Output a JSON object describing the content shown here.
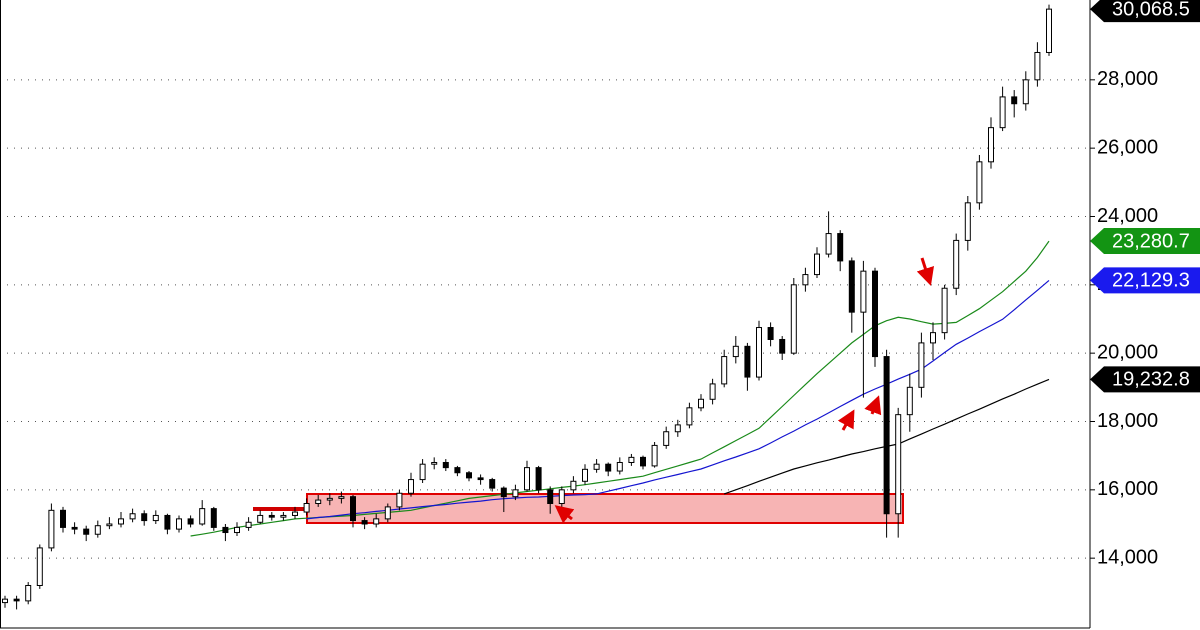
{
  "chart_data": {
    "type": "candlestick",
    "open": [
      12700,
      12800,
      12750,
      13200,
      14300,
      15400,
      14900,
      14850,
      14700,
      14950,
      15000,
      15150,
      15300,
      15100,
      15250,
      14850,
      15150,
      15000,
      15450,
      14900,
      14750,
      14900,
      15050,
      15250,
      15200,
      15250,
      15350,
      15600,
      15700,
      15750,
      15800,
      15100,
      15000,
      15150,
      15500,
      15900,
      16300,
      16750,
      16800,
      16650,
      16500,
      16350,
      16300,
      16050,
      15800,
      16000,
      16650,
      16000,
      15600,
      16000,
      16250,
      16600,
      16750,
      16550,
      16800,
      16950,
      16700,
      17300,
      17700,
      17900,
      18400,
      18650,
      19100,
      19900,
      20200,
      19300,
      20750,
      20400,
      20000,
      22000,
      22300,
      22900,
      23500,
      22700,
      21200,
      22400,
      19900,
      15300,
      18200,
      19000,
      20300,
      20600,
      21900,
      23300,
      24400,
      25600,
      26600,
      27500,
      27300,
      28000,
      28800
    ],
    "high": [
      12900,
      12900,
      13300,
      14400,
      15600,
      15500,
      15050,
      14950,
      15100,
      15200,
      15350,
      15450,
      15400,
      15400,
      15300,
      15250,
      15250,
      15700,
      15500,
      15000,
      15050,
      15200,
      15400,
      15350,
      15350,
      15500,
      15750,
      15850,
      15900,
      15950,
      15850,
      15200,
      15300,
      15600,
      16000,
      16500,
      16900,
      16950,
      16900,
      16700,
      16550,
      16450,
      16350,
      16100,
      16150,
      16850,
      16700,
      16100,
      16100,
      16400,
      16750,
      16900,
      16800,
      16950,
      17050,
      17000,
      17400,
      17850,
      18050,
      18550,
      18800,
      19250,
      20100,
      20500,
      20300,
      20950,
      20900,
      20500,
      22200,
      22500,
      23100,
      24150,
      23600,
      22800,
      22700,
      22500,
      20100,
      18400,
      19400,
      20600,
      20900,
      22000,
      23500,
      24600,
      25800,
      26900,
      27800,
      27700,
      28250,
      29100,
      30200
    ],
    "low": [
      12550,
      12500,
      12650,
      13100,
      14200,
      14750,
      14700,
      14500,
      14600,
      14850,
      14900,
      15050,
      14950,
      15000,
      14700,
      14750,
      14900,
      14950,
      14800,
      14500,
      14650,
      14800,
      15000,
      15100,
      15100,
      15150,
      15250,
      15500,
      15550,
      15600,
      14900,
      14850,
      14900,
      15050,
      15400,
      15800,
      16200,
      16600,
      16550,
      16400,
      16250,
      16150,
      15950,
      15350,
      15700,
      15950,
      15900,
      15300,
      15500,
      15900,
      16150,
      16500,
      16400,
      16450,
      16700,
      16600,
      16650,
      17200,
      17550,
      17800,
      18300,
      18500,
      19000,
      19700,
      18900,
      19200,
      20200,
      19800,
      19950,
      21800,
      22200,
      22800,
      22400,
      20600,
      18700,
      19600,
      14600,
      14600,
      17700,
      18700,
      19800,
      20400,
      21700,
      23000,
      24200,
      25400,
      26500,
      26900,
      27100,
      27800,
      28700
    ],
    "close": [
      12800,
      12750,
      13200,
      14300,
      15400,
      14900,
      14850,
      14700,
      14950,
      15000,
      15150,
      15300,
      15100,
      15250,
      14850,
      15150,
      15000,
      15450,
      14900,
      14750,
      14900,
      15050,
      15250,
      15200,
      15250,
      15350,
      15600,
      15700,
      15750,
      15800,
      15100,
      15000,
      15150,
      15500,
      15900,
      16300,
      16750,
      16800,
      16650,
      16500,
      16350,
      16300,
      16050,
      15800,
      16000,
      16650,
      16000,
      15600,
      16000,
      16250,
      16600,
      16750,
      16550,
      16800,
      16950,
      16700,
      17300,
      17700,
      17900,
      18400,
      18650,
      19100,
      19900,
      20200,
      19300,
      20750,
      20400,
      20000,
      22000,
      22300,
      22900,
      23500,
      22700,
      21200,
      22400,
      19900,
      15300,
      18200,
      19000,
      20300,
      20600,
      21900,
      23300,
      24400,
      25600,
      26600,
      27500,
      27300,
      28000,
      28800,
      30068.5
    ],
    "up_color": "#ffffff",
    "down_color": "#000000",
    "overlays": [
      {
        "color": "#1a8a1a",
        "values": [
          null,
          null,
          null,
          null,
          null,
          null,
          null,
          null,
          null,
          null,
          null,
          null,
          null,
          null,
          null,
          null,
          14650,
          14700,
          14760,
          14830,
          14900,
          14950,
          15000,
          15050,
          15100,
          15150,
          15170,
          15190,
          15210,
          15230,
          15250,
          15280,
          15310,
          15340,
          15370,
          15400,
          15470,
          15540,
          15610,
          15680,
          15750,
          15790,
          15830,
          15870,
          15910,
          15950,
          15990,
          16030,
          16070,
          16110,
          16150,
          16200,
          16250,
          16300,
          16350,
          16400,
          16500,
          16600,
          16700,
          16800,
          16900,
          17080,
          17260,
          17440,
          17620,
          17800,
          18120,
          18440,
          18760,
          19080,
          19400,
          19700,
          20000,
          20300,
          20550,
          20800,
          20950,
          21050,
          21000,
          20920,
          20850,
          20870,
          20900,
          21100,
          21300,
          21550,
          21800,
          22100,
          22400,
          22800,
          23280.7
        ]
      },
      {
        "color": "#1515d0",
        "values": [
          null,
          null,
          null,
          null,
          null,
          null,
          null,
          null,
          null,
          null,
          null,
          null,
          null,
          null,
          null,
          null,
          null,
          null,
          null,
          null,
          null,
          null,
          null,
          null,
          null,
          null,
          15150,
          15190,
          15220,
          15260,
          15300,
          15330,
          15370,
          15400,
          15440,
          15470,
          15510,
          15540,
          15570,
          15610,
          15640,
          15670,
          15710,
          15740,
          15760,
          15780,
          15790,
          15810,
          15830,
          15850,
          15860,
          15880,
          15960,
          16040,
          16120,
          16200,
          16290,
          16370,
          16450,
          16530,
          16610,
          16730,
          16850,
          16960,
          17080,
          17200,
          17370,
          17550,
          17720,
          17900,
          18070,
          18250,
          18440,
          18620,
          18800,
          18950,
          19090,
          19240,
          19380,
          19530,
          19770,
          20020,
          20260,
          20440,
          20630,
          20810,
          20990,
          21270,
          21560,
          21840,
          22129.3
        ]
      },
      {
        "color": "#000000",
        "values": [
          null,
          null,
          null,
          null,
          null,
          null,
          null,
          null,
          null,
          null,
          null,
          null,
          null,
          null,
          null,
          null,
          null,
          null,
          null,
          null,
          null,
          null,
          null,
          null,
          null,
          null,
          null,
          null,
          null,
          null,
          null,
          null,
          null,
          null,
          null,
          null,
          null,
          null,
          null,
          null,
          null,
          null,
          null,
          null,
          null,
          null,
          null,
          null,
          null,
          null,
          null,
          null,
          null,
          null,
          null,
          null,
          null,
          null,
          null,
          null,
          null,
          null,
          15880,
          16000,
          16120,
          16250,
          16370,
          16490,
          16610,
          16700,
          16790,
          16870,
          16960,
          17050,
          17120,
          17200,
          17270,
          17340,
          17490,
          17630,
          17780,
          17920,
          18070,
          18220,
          18360,
          18510,
          18660,
          18800,
          18950,
          19090,
          19232.8
        ]
      }
    ],
    "ylim": [
      11956,
      30336
    ],
    "yticks": [
      {
        "value": 14000,
        "label": "14,000"
      },
      {
        "value": 16000,
        "label": "16,000"
      },
      {
        "value": 18000,
        "label": "18,000"
      },
      {
        "value": 20000,
        "label": "20,000"
      },
      {
        "value": 22000,
        "label": "22,000"
      },
      {
        "value": 24000,
        "label": "24,000"
      },
      {
        "value": 26000,
        "label": "26,000"
      },
      {
        "value": 28000,
        "label": "28,000"
      }
    ],
    "grid": true,
    "price_tags": [
      {
        "value": 30068.5,
        "label": "30,068.5",
        "color": "#000000"
      },
      {
        "value": 23280.7,
        "label": "23,280.7",
        "color": "#139413"
      },
      {
        "value": 22129.3,
        "label": "22,129.3",
        "color": "#1a1aee"
      },
      {
        "value": 19232.8,
        "label": "19,232.8",
        "color": "#000000"
      }
    ]
  }
}
